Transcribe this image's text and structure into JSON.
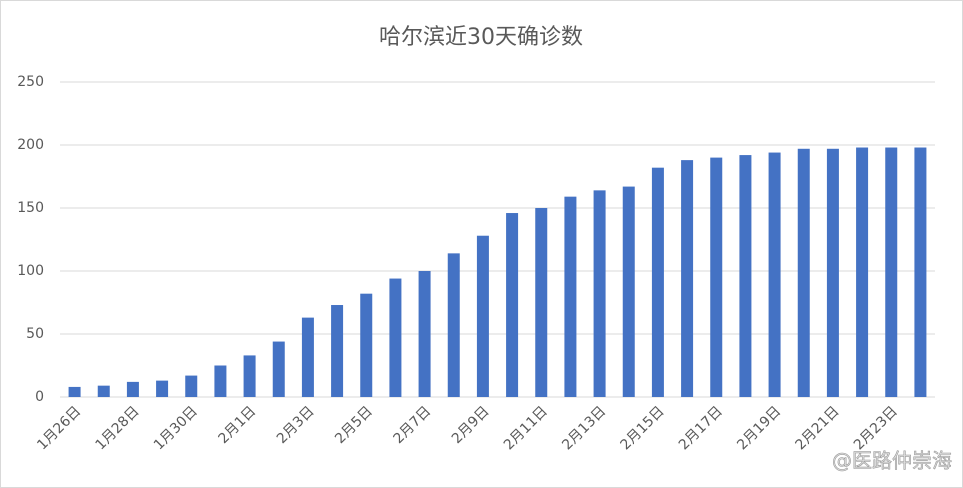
{
  "chart_data": {
    "type": "bar",
    "title": "哈尔滨近30天确诊数",
    "categories": [
      "1月26日",
      null,
      "1月28日",
      null,
      "1月30日",
      null,
      "2月1日",
      null,
      "2月3日",
      null,
      "2月5日",
      null,
      "2月7日",
      null,
      "2月9日",
      null,
      "2月11日",
      null,
      "2月13日",
      null,
      "2月15日",
      null,
      "2月17日",
      null,
      "2月19日",
      null,
      "2月21日",
      null,
      "2月23日",
      null
    ],
    "values": [
      8,
      9,
      12,
      13,
      17,
      25,
      33,
      44,
      63,
      73,
      82,
      94,
      100,
      114,
      128,
      146,
      150,
      159,
      164,
      167,
      182,
      188,
      190,
      192,
      194,
      197,
      197,
      198,
      198,
      198
    ],
    "color": "#4472c4",
    "ylim": [
      0,
      250
    ],
    "yticks": [
      0,
      50,
      100,
      150,
      200,
      250
    ],
    "grid": true,
    "watermark": "@医路仲崇海"
  }
}
